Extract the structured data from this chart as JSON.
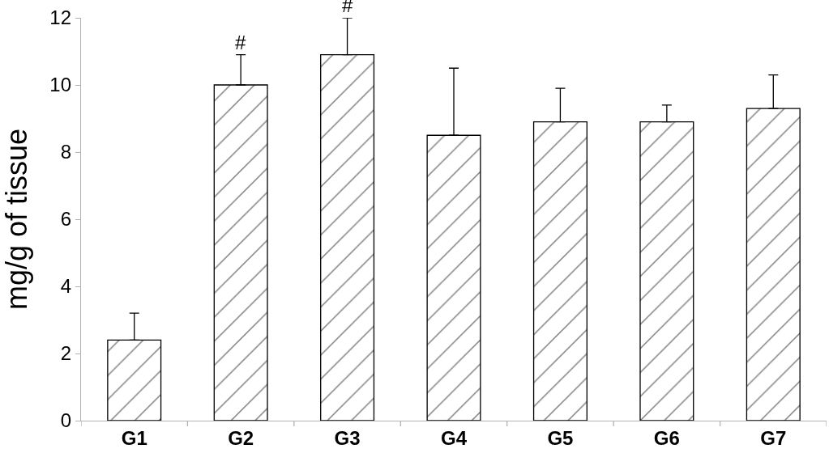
{
  "chart_data": {
    "type": "bar",
    "categories": [
      "G1",
      "G2",
      "G3",
      "G4",
      "G5",
      "G6",
      "G7"
    ],
    "values": [
      2.4,
      10.0,
      10.9,
      8.5,
      8.9,
      8.9,
      9.3
    ],
    "errors": [
      [
        2.4,
        3.2
      ],
      [
        10.0,
        10.9
      ],
      [
        10.9,
        12.0
      ],
      [
        8.5,
        10.5
      ],
      [
        8.9,
        9.9
      ],
      [
        8.9,
        9.4
      ],
      [
        9.3,
        10.3
      ]
    ],
    "color": "#000000",
    "ylabel": "mg/g of tissue",
    "ylim": [
      0,
      12
    ],
    "yticks": [
      0,
      2,
      4,
      6,
      8,
      10,
      12
    ],
    "annotations": [
      {
        "text": "#",
        "x": "G2",
        "y": 10.9
      },
      {
        "text": "#",
        "x": "G3",
        "y": 12.0
      }
    ]
  }
}
